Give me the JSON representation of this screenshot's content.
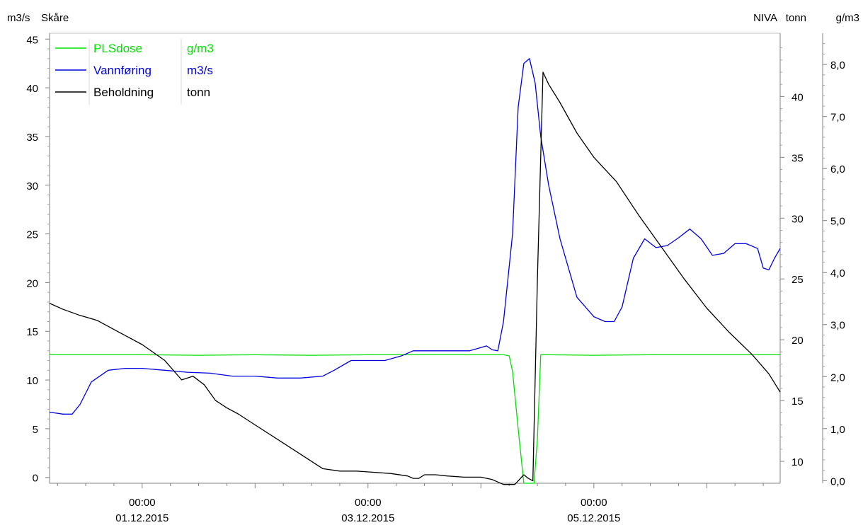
{
  "chart_data": {
    "type": "line",
    "header": {
      "left_unit": "m3/s",
      "station": "Skåre",
      "right_source": "NIVA",
      "right_unit_1": "tonn",
      "right_unit_2": "g/m3"
    },
    "x_ticks": [
      {
        "x": 1.0,
        "time": "00:00",
        "date": "01.12.2015"
      },
      {
        "x": 3.0,
        "time": "00:00",
        "date": "03.12.2015"
      },
      {
        "x": 5.0,
        "time": "00:00",
        "date": "05.12.2015"
      }
    ],
    "x_range": [
      0.18,
      6.65
    ],
    "axes": {
      "left": {
        "range": [
          -0.6,
          45.6
        ],
        "ticks": [
          "0",
          "5",
          "10",
          "15",
          "20",
          "25",
          "30",
          "35",
          "40",
          "45"
        ]
      },
      "right1": {
        "range": [
          8.2,
          45.2
        ],
        "ticks": [
          "10",
          "15",
          "20",
          "25",
          "30",
          "35",
          "40"
        ]
      },
      "right2": {
        "range": [
          -0.05,
          8.6
        ],
        "ticks": [
          "0,0",
          "1,0",
          "2,0",
          "3,0",
          "4,0",
          "5,0",
          "6,0",
          "7,0",
          "8,0"
        ]
      }
    },
    "grid": false,
    "legend": {
      "position": "top-left",
      "entries": [
        {
          "name": "PLSdose",
          "unit": "g/m3",
          "color": "#00e000"
        },
        {
          "name": "Vannføring",
          "unit": "m3/s",
          "color": "#0000e0"
        },
        {
          "name": "Beholdning",
          "unit": "tonn",
          "color": "#000000"
        }
      ]
    },
    "series": [
      {
        "name": "PLSdose",
        "unit": "g/m3",
        "axis": "right2",
        "color": "#00e000",
        "x": [
          0.18,
          0.5,
          1.0,
          1.5,
          2.0,
          2.5,
          3.0,
          3.5,
          4.0,
          4.2,
          4.25,
          4.28,
          4.33,
          4.38,
          4.43,
          4.47,
          4.5,
          4.53,
          4.6,
          5.0,
          5.5,
          6.0,
          6.5,
          6.65
        ],
        "y": [
          2.42,
          2.42,
          2.42,
          2.41,
          2.42,
          2.41,
          2.42,
          2.42,
          2.42,
          2.42,
          2.4,
          2.1,
          1.0,
          -0.05,
          -0.05,
          -0.05,
          0.8,
          2.42,
          2.42,
          2.41,
          2.42,
          2.42,
          2.42,
          2.42
        ]
      },
      {
        "name": "Vannføring",
        "unit": "m3/s",
        "axis": "left",
        "color": "#0000e0",
        "x": [
          0.18,
          0.3,
          0.38,
          0.45,
          0.55,
          0.7,
          0.85,
          1.0,
          1.2,
          1.4,
          1.6,
          1.8,
          2.0,
          2.2,
          2.4,
          2.6,
          2.7,
          2.85,
          3.0,
          3.15,
          3.3,
          3.4,
          3.55,
          3.7,
          3.9,
          4.05,
          4.1,
          4.15,
          4.2,
          4.28,
          4.33,
          4.38,
          4.43,
          4.48,
          4.53,
          4.6,
          4.7,
          4.85,
          5.0,
          5.1,
          5.18,
          5.25,
          5.35,
          5.45,
          5.55,
          5.65,
          5.75,
          5.85,
          5.95,
          6.05,
          6.15,
          6.25,
          6.35,
          6.45,
          6.5,
          6.55,
          6.6,
          6.65
        ],
        "y": [
          6.7,
          6.5,
          6.5,
          7.5,
          9.8,
          11.0,
          11.2,
          11.2,
          11.0,
          10.8,
          10.7,
          10.4,
          10.4,
          10.2,
          10.2,
          10.4,
          11.0,
          12.0,
          12.0,
          12.0,
          12.5,
          13.0,
          13.0,
          13.0,
          13.0,
          13.5,
          13.1,
          13.0,
          16.0,
          25.0,
          38.0,
          42.5,
          43.0,
          40.5,
          35.0,
          30.0,
          24.5,
          18.5,
          16.5,
          16.0,
          16.0,
          17.5,
          22.5,
          24.5,
          23.6,
          23.8,
          24.6,
          25.5,
          24.5,
          22.8,
          23.0,
          24.0,
          24.0,
          23.5,
          21.5,
          21.3,
          22.5,
          23.5
        ]
      },
      {
        "name": "Beholdning",
        "unit": "tonn",
        "axis": "right1",
        "color": "#000000",
        "x": [
          0.18,
          0.3,
          0.45,
          0.6,
          0.8,
          1.0,
          1.2,
          1.35,
          1.45,
          1.55,
          1.65,
          1.75,
          1.85,
          2.0,
          2.2,
          2.4,
          2.6,
          2.75,
          2.9,
          3.05,
          3.2,
          3.35,
          3.4,
          3.45,
          3.5,
          3.6,
          3.7,
          3.85,
          4.0,
          4.1,
          4.2,
          4.28,
          4.3,
          4.38,
          4.42,
          4.46,
          4.5,
          4.55,
          4.6,
          4.7,
          4.85,
          5.0,
          5.2,
          5.4,
          5.6,
          5.8,
          6.0,
          6.2,
          6.4,
          6.55,
          6.65
        ],
        "y": [
          23.0,
          22.5,
          22.0,
          21.6,
          20.6,
          19.6,
          18.3,
          16.7,
          17.0,
          16.3,
          15.0,
          14.4,
          13.9,
          13.0,
          11.8,
          10.6,
          9.4,
          9.2,
          9.2,
          9.1,
          9.0,
          8.8,
          8.6,
          8.6,
          8.9,
          8.9,
          8.8,
          8.7,
          8.7,
          8.5,
          8.1,
          8.1,
          8.1,
          8.9,
          8.6,
          8.4,
          25.0,
          42.0,
          41.0,
          39.5,
          37.0,
          35.0,
          33.0,
          30.2,
          27.6,
          25.0,
          22.6,
          20.6,
          18.8,
          17.2,
          15.7
        ]
      }
    ]
  }
}
